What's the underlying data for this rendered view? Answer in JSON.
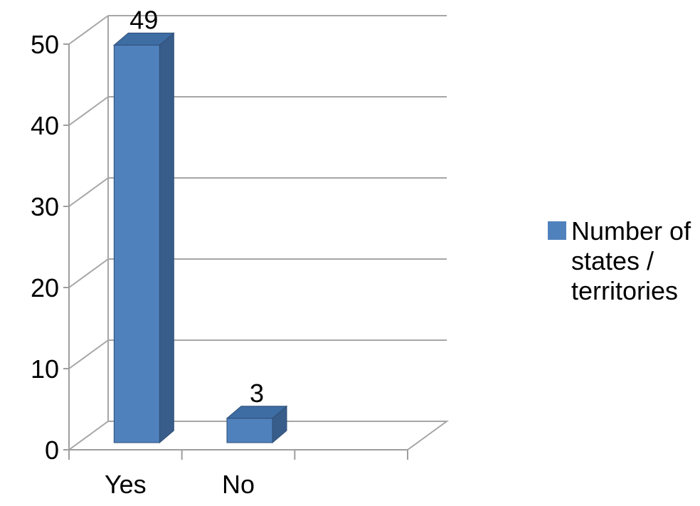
{
  "chart_data": {
    "type": "bar",
    "categories": [
      "Yes",
      "No"
    ],
    "series": [
      {
        "name": "Number of states / territories",
        "values": [
          49,
          3
        ]
      }
    ],
    "data_labels": [
      "49",
      "3"
    ],
    "ylim": [
      0,
      50
    ],
    "yticks": [
      0,
      10,
      20,
      30,
      40,
      50
    ],
    "ytick_labels": [
      "0",
      "10",
      "20",
      "30",
      "40",
      "50"
    ],
    "grid": true,
    "style": "3d-column",
    "legend": {
      "position": "right",
      "lines": [
        "Number of",
        "states /",
        "territories"
      ]
    },
    "colors": {
      "bar_front": "#4F81BD",
      "bar_side": "#385D8A",
      "bar_top": "#3E6DA4",
      "bar_edge": "#2F4F77",
      "grid": "#A6A6A6",
      "axis": "#9E9E9E"
    }
  }
}
